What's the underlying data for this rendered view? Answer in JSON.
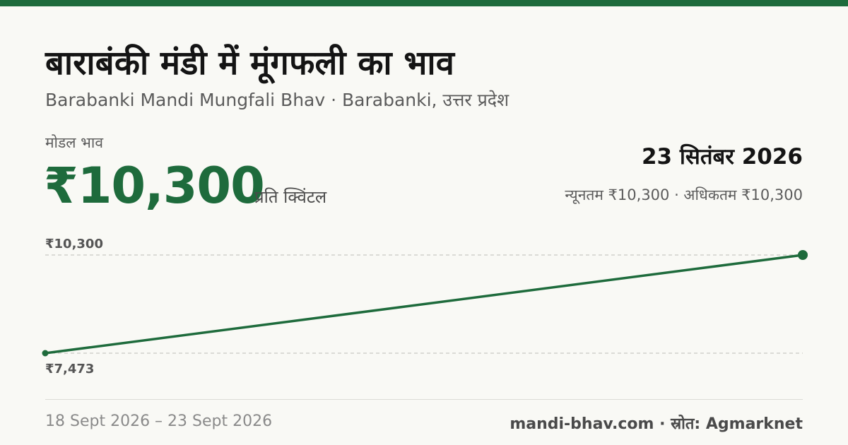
{
  "header": {
    "title": "बाराबंकी मंडी में मूंगफली का भाव",
    "subtitle": "Barabanki Mandi Mungfali Bhav · Barabanki, उत्तर प्रदेश"
  },
  "price": {
    "label": "मोडल भाव",
    "value": "₹10,300",
    "unit": "प्रति क्विंटल"
  },
  "summary": {
    "date": "23 सितंबर 2026",
    "range": "न्यूनतम ₹10,300 · अधिकतम ₹10,300"
  },
  "chart_data": {
    "type": "line",
    "x": [
      "18 Sept 2026",
      "23 Sept 2026"
    ],
    "series": [
      {
        "values": [
          7473,
          10300
        ]
      }
    ],
    "ylim": [
      7473,
      10300
    ],
    "tick_labels": {
      "max": "₹10,300",
      "min": "₹7,473"
    },
    "grid": true,
    "accent_color": "#1e6b3c"
  },
  "footer": {
    "date_range": "18 Sept 2026 – 23 Sept 2026",
    "source": "mandi-bhav.com · स्रोत: Agmarknet"
  },
  "colors": {
    "brand": "#1e6b3c",
    "background": "#f9f9f5"
  }
}
